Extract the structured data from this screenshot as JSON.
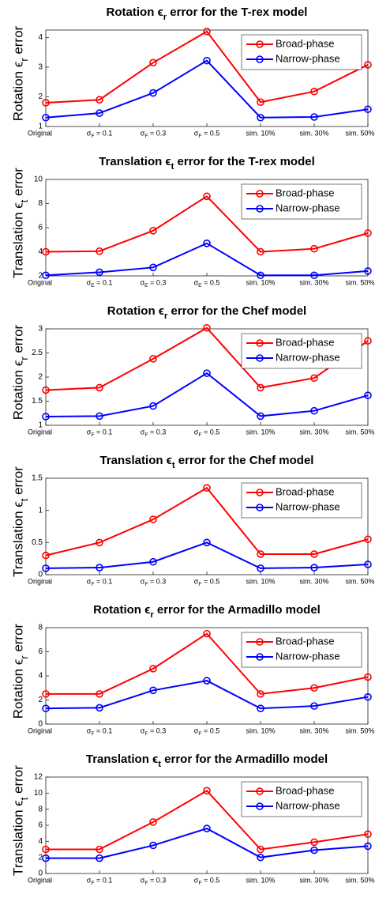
{
  "chart_data": [
    {
      "type": "line",
      "title": "Rotation ϵr error for the T-rex model",
      "ylabel": "Rotation ϵr error",
      "categories": [
        "Original",
        "σF = 0.1",
        "σF = 0.3",
        "σF = 0.5",
        "sim. 10%",
        "sim. 30%",
        "sim. 50%"
      ],
      "series": [
        {
          "name": "Broad-phase",
          "color": "#ff0000",
          "values": [
            1.8,
            1.9,
            3.15,
            4.2,
            1.82,
            2.18,
            3.08
          ]
        },
        {
          "name": "Narrow-phase",
          "color": "#0000ff",
          "values": [
            1.3,
            1.45,
            2.13,
            3.22,
            1.3,
            1.32,
            1.58
          ]
        }
      ],
      "ylim": [
        1,
        4.25
      ],
      "yticks": [
        1,
        2,
        3,
        4
      ],
      "legend": "upper right"
    },
    {
      "type": "line",
      "title": "Translation ϵt error for the T-rex model",
      "ylabel": "Translation ϵt error",
      "categories": [
        "Original",
        "σE = 0.1",
        "σE = 0.3",
        "σE = 0.5",
        "sim. 10%",
        "sim. 30%",
        "sim. 50%"
      ],
      "series": [
        {
          "name": "Broad-phase",
          "color": "#ff0000",
          "values": [
            4,
            4.05,
            5.75,
            8.6,
            4,
            4.25,
            5.55
          ]
        },
        {
          "name": "Narrow-phase",
          "color": "#0000ff",
          "values": [
            2.05,
            2.3,
            2.7,
            4.7,
            2.05,
            2.05,
            2.4
          ]
        }
      ],
      "ylim": [
        2,
        10
      ],
      "yticks": [
        2,
        4,
        6,
        8,
        10
      ],
      "legend": "upper right"
    },
    {
      "type": "line",
      "title": "Rotation ϵr error for the Chef model",
      "ylabel": "Rotation ϵr error",
      "categories": [
        "Original",
        "σF = 0.1",
        "σF = 0.3",
        "σF = 0.5",
        "sim. 10%",
        "sim. 30%",
        "sim. 50%"
      ],
      "series": [
        {
          "name": "Broad-phase",
          "color": "#ff0000",
          "values": [
            1.73,
            1.78,
            2.38,
            3.02,
            1.78,
            1.98,
            2.75
          ]
        },
        {
          "name": "Narrow-phase",
          "color": "#0000ff",
          "values": [
            1.18,
            1.19,
            1.4,
            2.08,
            1.19,
            1.3,
            1.62
          ]
        }
      ],
      "ylim": [
        1,
        3
      ],
      "yticks": [
        1,
        1.5,
        2,
        2.5,
        3
      ],
      "legend": "upper right"
    },
    {
      "type": "line",
      "title": "Translation ϵt error for the Chef model",
      "ylabel": "Translation ϵt error",
      "categories": [
        "Original",
        "σF = 0.1",
        "σF = 0.3",
        "σF = 0.5",
        "sim. 10%",
        "sim. 30%",
        "sim. 50%"
      ],
      "series": [
        {
          "name": "Broad-phase",
          "color": "#ff0000",
          "values": [
            0.3,
            0.5,
            0.86,
            1.35,
            0.32,
            0.32,
            0.55
          ]
        },
        {
          "name": "Narrow-phase",
          "color": "#0000ff",
          "values": [
            0.1,
            0.11,
            0.2,
            0.5,
            0.1,
            0.11,
            0.16
          ]
        }
      ],
      "ylim": [
        0,
        1.5
      ],
      "yticks": [
        0,
        0.5,
        1,
        1.5
      ],
      "legend": "upper right"
    },
    {
      "type": "line",
      "title": "Rotation ϵr error for the Armadillo model",
      "ylabel": "Rotation ϵr error",
      "categories": [
        "Original",
        "σF = 0.1",
        "σF = 0.3",
        "σF = 0.5",
        "sim. 10%",
        "sim. 30%",
        "sim. 50%"
      ],
      "series": [
        {
          "name": "Broad-phase",
          "color": "#ff0000",
          "values": [
            2.5,
            2.5,
            4.6,
            7.5,
            2.5,
            3,
            3.9
          ]
        },
        {
          "name": "Narrow-phase",
          "color": "#0000ff",
          "values": [
            1.3,
            1.35,
            2.8,
            3.6,
            1.3,
            1.5,
            2.25
          ]
        }
      ],
      "ylim": [
        0,
        8
      ],
      "yticks": [
        0,
        2,
        4,
        6,
        8
      ],
      "legend": "upper right"
    },
    {
      "type": "line",
      "title": "Translation ϵt error for the Armadillo model",
      "ylabel": "Translation ϵt error",
      "categories": [
        "Original",
        "σF = 0.1",
        "σF = 0.3",
        "σF = 0.5",
        "sim. 10%",
        "sim. 30%",
        "sim. 50%"
      ],
      "series": [
        {
          "name": "Broad-phase",
          "color": "#ff0000",
          "values": [
            3,
            3,
            6.4,
            10.3,
            3,
            3.9,
            4.9
          ]
        },
        {
          "name": "Narrow-phase",
          "color": "#0000ff",
          "values": [
            1.9,
            1.9,
            3.5,
            5.6,
            2,
            2.9,
            3.4
          ]
        }
      ],
      "ylim": [
        0,
        12
      ],
      "yticks": [
        0,
        2,
        4,
        6,
        8,
        10,
        12
      ],
      "legend": "upper right"
    }
  ]
}
